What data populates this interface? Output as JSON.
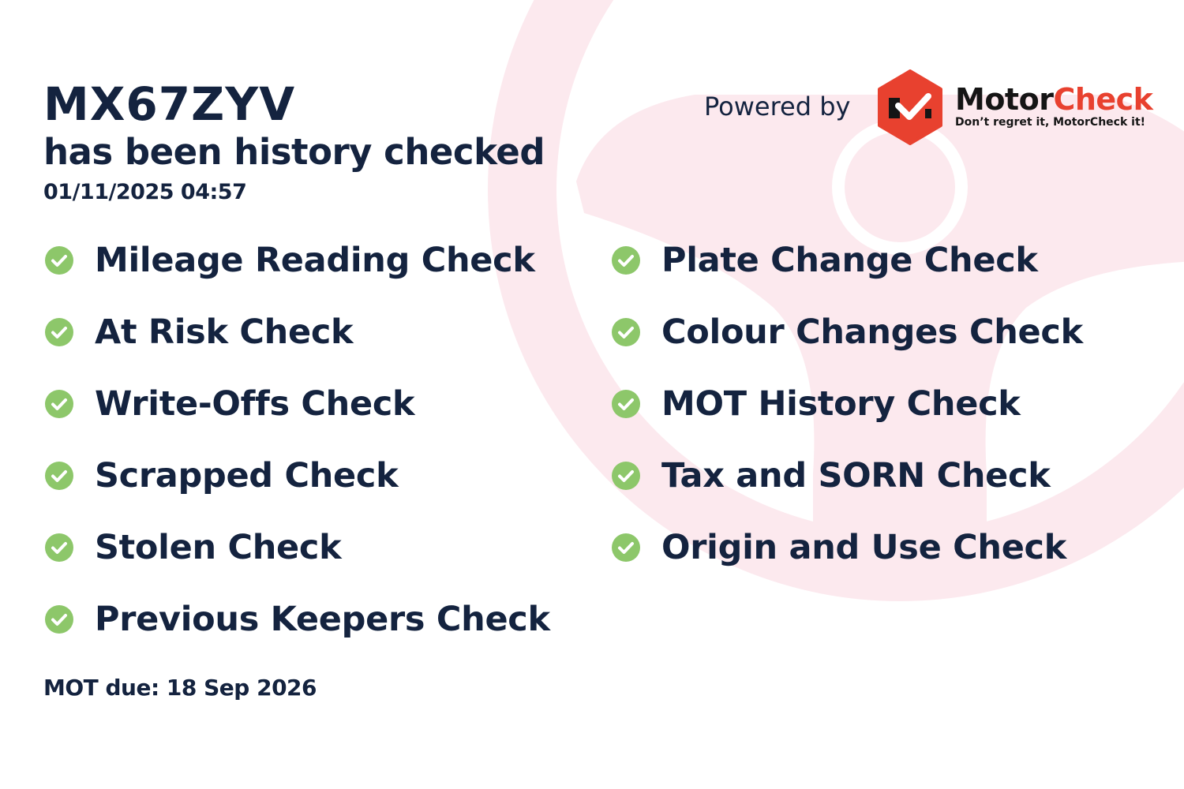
{
  "vehicle": {
    "plate": "MX67ZYV",
    "subtitle": "has been history checked",
    "checked_at": "01/11/2025 04:57"
  },
  "branding": {
    "powered_by": "Powered by",
    "brand_part1": "Motor",
    "brand_part2": "Check",
    "tagline": "Don’t regret it, MotorCheck it!",
    "logo_color": "#e8412f"
  },
  "checks_left": [
    "Mileage Reading Check",
    "At Risk Check",
    "Write-Offs Check",
    "Scrapped Check",
    "Stolen Check",
    "Previous Keepers Check"
  ],
  "checks_right": [
    "Plate Change Check",
    "Colour Changes Check",
    "MOT History Check",
    "Tax and SORN Check",
    "Origin and Use Check"
  ],
  "check_icon": "check-circle-icon",
  "check_color": "#8dc76a",
  "mot_due": "MOT due: 18 Sep 2026",
  "colors": {
    "text": "#14233f",
    "background_wheel": "#fce9ee"
  }
}
